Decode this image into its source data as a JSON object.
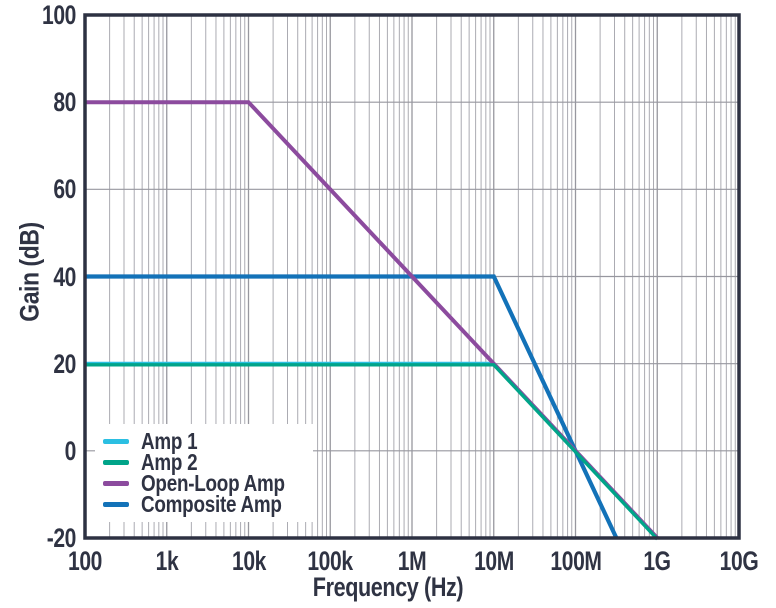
{
  "figure": {
    "background": "#ffffff",
    "text_color": "#2f3343",
    "frame_color": "#2d3142",
    "grid_minor_color": "#ababb2",
    "grid_major_color": "#97979f"
  },
  "chart_data": {
    "type": "line",
    "title": "",
    "xlabel": "Frequency (Hz)",
    "ylabel": "Gain (dB)",
    "x_scale": "log",
    "x_range": [
      100,
      10000000000
    ],
    "y_range": [
      -20,
      100
    ],
    "grid": "log minor vertical gridlines per decade; horizontal gridlines every 20 dB",
    "legend_position": "lower-left",
    "x_ticks": [
      {
        "value": 100,
        "label": "100"
      },
      {
        "value": 1000,
        "label": "1k"
      },
      {
        "value": 10000,
        "label": "10k"
      },
      {
        "value": 100000,
        "label": "100k"
      },
      {
        "value": 1000000,
        "label": "1M"
      },
      {
        "value": 10000000,
        "label": "10M"
      },
      {
        "value": 100000000,
        "label": "100M"
      },
      {
        "value": 1000000000,
        "label": "1G"
      },
      {
        "value": 10000000000,
        "label": "10G"
      }
    ],
    "y_ticks": [
      {
        "value": 100,
        "label": "100"
      },
      {
        "value": 80,
        "label": "80"
      },
      {
        "value": 60,
        "label": "60"
      },
      {
        "value": 40,
        "label": "40"
      },
      {
        "value": 20,
        "label": "20"
      },
      {
        "value": 0,
        "label": "0"
      },
      {
        "value": -20,
        "label": "-20"
      }
    ],
    "series": [
      {
        "name": "Amp 1",
        "color": "#2bbfe2",
        "points": [
          [
            100,
            20
          ],
          [
            10000000,
            20
          ],
          [
            1000000000,
            -20
          ]
        ]
      },
      {
        "name": "Amp 2",
        "color": "#00a489",
        "points": [
          [
            100,
            20
          ],
          [
            10000000,
            20
          ],
          [
            1000000000,
            -20
          ]
        ]
      },
      {
        "name": "Open-Loop Amp",
        "color": "#8c4b9e",
        "points": [
          [
            100,
            80
          ],
          [
            10000,
            80
          ],
          [
            1000000000,
            -20
          ]
        ]
      },
      {
        "name": "Composite Amp",
        "color": "#1372b8",
        "points": [
          [
            100,
            40
          ],
          [
            10000000,
            40
          ],
          [
            316227766,
            -20
          ]
        ]
      }
    ]
  }
}
